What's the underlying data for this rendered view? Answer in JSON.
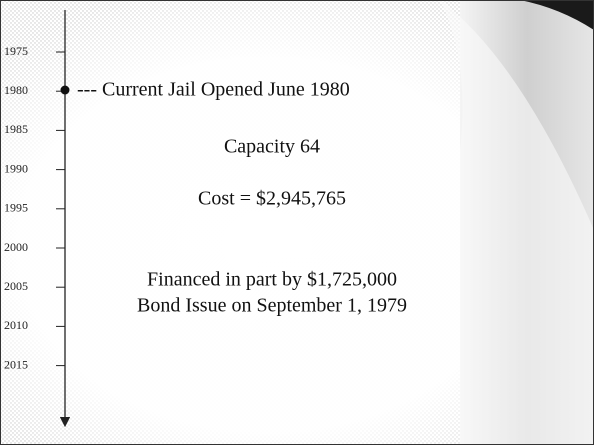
{
  "timeline": {
    "years": [
      "1975",
      "1980",
      "1985",
      "1990",
      "1995",
      "2000",
      "2005",
      "2010",
      "2015"
    ]
  },
  "event": "--- Current Jail Opened June 1980",
  "details": [
    "Capacity 64",
    "Cost = $2,945,765"
  ],
  "financing": [
    "Financed in part by $1,725,000",
    "Bond Issue on September 1, 1979"
  ]
}
